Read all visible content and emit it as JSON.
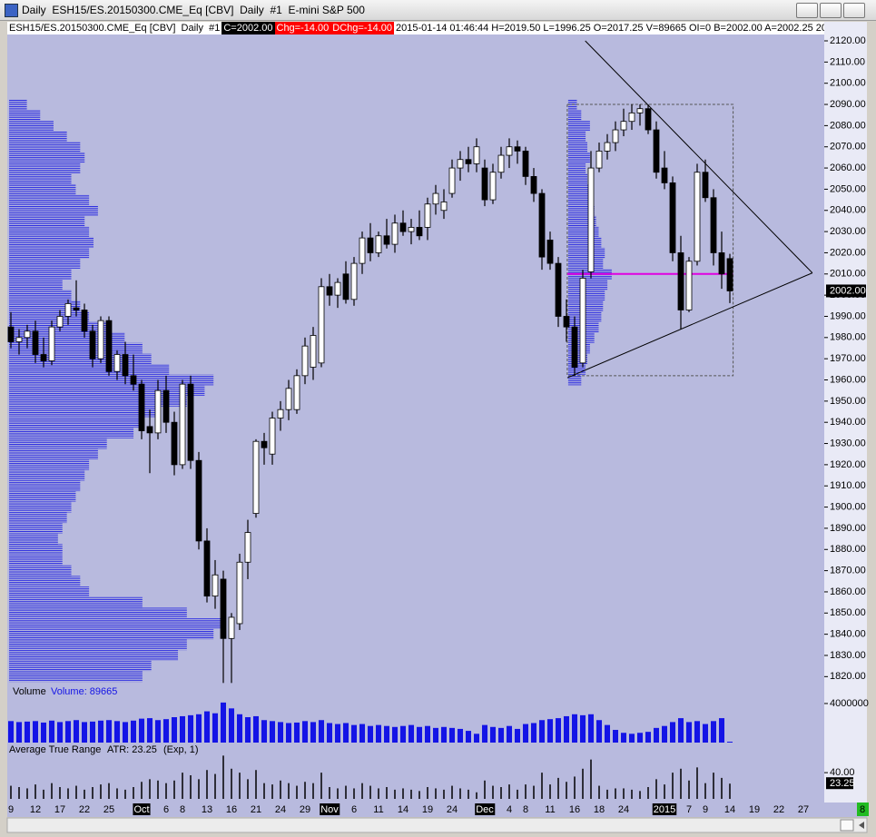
{
  "window": {
    "title": "Daily  ESH15/ES.20150300.CME_Eq [CBV]  Daily  #1  E-mini S&P 500",
    "info": [
      "ESH15/ES.20150300.CME_Eq [CBV]  Daily  #1",
      "C=2002.00",
      "Chg=-14.00",
      "DChg=-14.00",
      "2015-01-14 01:46:44 H=2019.50 L=1996.25 O=2017.25 V=89665 OI=0 B=2002.00 A=2002.25 20x13 DR"
    ],
    "badge": "8"
  },
  "chart_data": [
    {
      "type": "candlestick",
      "categories": [
        "9",
        null,
        null,
        "12",
        null,
        null,
        "17",
        null,
        null,
        "22",
        null,
        null,
        "25",
        null,
        null,
        null,
        "Oct",
        null,
        null,
        "6",
        null,
        "8",
        null,
        null,
        "13",
        null,
        null,
        "16",
        null,
        null,
        "21",
        null,
        null,
        "24",
        null,
        null,
        "29",
        null,
        null,
        "Nov",
        null,
        null,
        "6",
        null,
        null,
        "11",
        null,
        null,
        "14",
        null,
        null,
        "19",
        null,
        null,
        "24",
        null,
        null,
        null,
        "Dec",
        null,
        null,
        "4",
        null,
        "8",
        null,
        null,
        "11",
        null,
        null,
        "16",
        null,
        null,
        "18",
        null,
        null,
        "24",
        null,
        null,
        null,
        null,
        "2015",
        null,
        null,
        "7",
        null,
        "9",
        null,
        null,
        "14",
        null,
        null,
        "19",
        null,
        null,
        "22",
        null,
        null,
        "27",
        null,
        null
      ],
      "open": [
        1985,
        1978,
        1980,
        1983,
        1972,
        1969,
        1985,
        1990,
        1994,
        1993,
        1983,
        1970,
        1988,
        1964,
        1972,
        1962,
        1958,
        1938,
        1935,
        1955,
        1940,
        1920,
        1958,
        1922,
        1884,
        1858,
        1866,
        1838,
        1845,
        1874,
        1897,
        1931,
        1925,
        1942,
        1946,
        1946,
        1962,
        1966,
        1968,
        2004,
        2000,
        2010,
        1998,
        2015,
        2027,
        2020,
        2028,
        2024,
        2034,
        2030,
        2032,
        2032,
        2043,
        2040,
        2048,
        2060,
        2064,
        2062,
        2060,
        2045,
        2058,
        2066,
        2070,
        2068,
        2056,
        2048,
        2026,
        2015,
        1990,
        1985,
        1968,
        2011,
        2060,
        2068,
        2072,
        2078,
        2082,
        2086,
        2088,
        2078,
        2060,
        2053,
        2020,
        1993,
        2016,
        2058,
        2046,
        2020,
        2017.25,
        null,
        null,
        null,
        null,
        null,
        null,
        null,
        null,
        null,
        null,
        null
      ],
      "high": [
        1992,
        1984,
        1986,
        1988,
        1980,
        1988,
        1993,
        1998,
        2007,
        1996,
        1986,
        1990,
        1990,
        1974,
        1978,
        1972,
        1960,
        1946,
        1960,
        1962,
        1945,
        1960,
        1962,
        1926,
        1890,
        1875,
        1870,
        1850,
        1878,
        1894,
        1932,
        1935,
        1945,
        1950,
        1960,
        1965,
        1980,
        1985,
        2008,
        2010,
        2008,
        2016,
        2018,
        2030,
        2034,
        2030,
        2036,
        2038,
        2040,
        2036,
        2040,
        2046,
        2052,
        2050,
        2064,
        2068,
        2070,
        2074,
        2064,
        2062,
        2070,
        2074,
        2073,
        2070,
        2060,
        2050,
        2030,
        2018,
        1998,
        1990,
        2012,
        2068,
        2072,
        2076,
        2082,
        2088,
        2090,
        2090,
        2090,
        2082,
        2068,
        2056,
        2028,
        2018,
        2062,
        2064,
        2050,
        2030,
        2019.5,
        null,
        null,
        null,
        null,
        null,
        null,
        null,
        null,
        null,
        null,
        null
      ],
      "low": [
        1975,
        1972,
        1975,
        1968,
        1966,
        1967,
        1983,
        1986,
        1990,
        1980,
        1966,
        1968,
        1962,
        1960,
        1958,
        1955,
        1932,
        1916,
        1932,
        1935,
        1915,
        1918,
        1918,
        1880,
        1855,
        1852,
        1817,
        1817,
        1842,
        1866,
        1895,
        1920,
        1920,
        1936,
        1941,
        1944,
        1958,
        1960,
        1966,
        1995,
        1994,
        1996,
        1995,
        2010,
        2016,
        2018,
        2022,
        2020,
        2028,
        2024,
        2026,
        2026,
        2038,
        2036,
        2046,
        2054,
        2058,
        2058,
        2042,
        2043,
        2055,
        2060,
        2062,
        2052,
        2044,
        2012,
        2012,
        1985,
        1978,
        1962,
        1966,
        2008,
        2058,
        2064,
        2068,
        2075,
        2078,
        2080,
        2076,
        2055,
        2050,
        2016,
        1984,
        1992,
        2014,
        2044,
        2014,
        2003,
        1996.25,
        null,
        null,
        null,
        null,
        null,
        null,
        null,
        null,
        null,
        null,
        null
      ],
      "close": [
        1978,
        1980,
        1983,
        1972,
        1969,
        1985,
        1990,
        1996,
        1993,
        1983,
        1970,
        1988,
        1964,
        1972,
        1962,
        1958,
        1936,
        1935,
        1955,
        1940,
        1920,
        1958,
        1922,
        1884,
        1858,
        1868,
        1838,
        1848,
        1874,
        1888,
        1931,
        1928,
        1942,
        1946,
        1956,
        1962,
        1976,
        1981,
        2004,
        2000,
        2006,
        1998,
        2015,
        2027,
        2020,
        2028,
        2024,
        2034,
        2030,
        2032,
        2028,
        2043,
        2048,
        2044,
        2060,
        2064,
        2062,
        2070,
        2045,
        2058,
        2066,
        2070,
        2068,
        2056,
        2048,
        2018,
        2015,
        1990,
        1985,
        1966,
        2008,
        2060,
        2068,
        2072,
        2078,
        2082,
        2086,
        2088,
        2078,
        2058,
        2053,
        2020,
        1993,
        2016,
        2058,
        2046,
        2020,
        2010,
        2002,
        null,
        null,
        null,
        null,
        null,
        null,
        null,
        null,
        null,
        null,
        null
      ],
      "up_color": "#ffffff",
      "down_color": "#000000",
      "ylim": [
        1815,
        2123
      ],
      "yticks": [
        {
          "value": 1820,
          "label": "1820.00"
        },
        {
          "value": 1830,
          "label": "1830.00"
        },
        {
          "value": 1840,
          "label": "1840.00"
        },
        {
          "value": 1850,
          "label": "1850.00"
        },
        {
          "value": 1860,
          "label": "1860.00"
        },
        {
          "value": 1870,
          "label": "1870.00"
        },
        {
          "value": 1880,
          "label": "1880.00"
        },
        {
          "value": 1890,
          "label": "1890.00"
        },
        {
          "value": 1900,
          "label": "1900.00"
        },
        {
          "value": 1910,
          "label": "1910.00"
        },
        {
          "value": 1920,
          "label": "1920.00"
        },
        {
          "value": 1930,
          "label": "1930.00"
        },
        {
          "value": 1940,
          "label": "1940.00"
        },
        {
          "value": 1950,
          "label": "1950.00"
        },
        {
          "value": 1960,
          "label": "1960.00"
        },
        {
          "value": 1970,
          "label": "1970.00"
        },
        {
          "value": 1980,
          "label": "1980.00"
        },
        {
          "value": 1990,
          "label": "1990.00"
        },
        {
          "value": 2000,
          "label": "2000.00"
        },
        {
          "value": 2010,
          "label": "2010.00"
        },
        {
          "value": 2020,
          "label": "2020.00"
        },
        {
          "value": 2030,
          "label": "2030.00"
        },
        {
          "value": 2040,
          "label": "2040.00"
        },
        {
          "value": 2050,
          "label": "2050.00"
        },
        {
          "value": 2060,
          "label": "2060.00"
        },
        {
          "value": 2070,
          "label": "2070.00"
        },
        {
          "value": 2080,
          "label": "2080.00"
        },
        {
          "value": 2090,
          "label": "2090.00"
        },
        {
          "value": 2100,
          "label": "2100.00"
        },
        {
          "value": 2110,
          "label": "2110.00"
        },
        {
          "value": 2120,
          "label": "2120.00"
        }
      ],
      "last_price": {
        "value": 2002,
        "label": "2002.00"
      },
      "profiles": [
        {
          "color": "#2a2ae0",
          "prices": [
            1820,
            1825,
            1830,
            1835,
            1840,
            1845,
            1850,
            1855,
            1860,
            1865,
            1870,
            1875,
            1880,
            1885,
            1890,
            1895,
            1900,
            1905,
            1910,
            1915,
            1920,
            1925,
            1930,
            1935,
            1940,
            1945,
            1950,
            1955,
            1960,
            1965,
            1970,
            1975,
            1980,
            1985,
            1990,
            1995,
            2000,
            2005,
            2010,
            2015,
            2020,
            2025,
            2030,
            2035,
            2040,
            2045,
            2050,
            2055,
            2060,
            2065,
            2070,
            2075,
            2080,
            2085,
            2090
          ],
          "volumes": [
            150,
            160,
            190,
            200,
            230,
            240,
            200,
            150,
            90,
            80,
            70,
            60,
            60,
            55,
            60,
            65,
            70,
            75,
            80,
            85,
            90,
            100,
            110,
            140,
            150,
            170,
            200,
            220,
            230,
            180,
            160,
            150,
            130,
            110,
            90,
            80,
            70,
            60,
            70,
            80,
            90,
            95,
            90,
            85,
            100,
            90,
            75,
            70,
            80,
            85,
            80,
            65,
            50,
            35,
            20
          ]
        },
        {
          "color": "#2a2ae0",
          "prices": [
            1960,
            1965,
            1970,
            1975,
            1980,
            1985,
            1990,
            1995,
            2000,
            2005,
            2010,
            2015,
            2020,
            2025,
            2030,
            2035,
            2040,
            2045,
            2050,
            2055,
            2060,
            2065,
            2070,
            2075,
            2080,
            2085,
            2090
          ],
          "volumes": [
            15,
            20,
            22,
            25,
            30,
            35,
            38,
            40,
            42,
            45,
            50,
            40,
            42,
            38,
            35,
            32,
            30,
            28,
            25,
            22,
            20,
            25,
            22,
            20,
            25,
            15,
            10
          ]
        }
      ],
      "box": {
        "x": [
          68.1,
          88.4
        ],
        "y": [
          1962,
          2090
        ]
      },
      "hline": {
        "x": [
          68.1,
          88.4
        ],
        "y": 2010,
        "color": "#e000e0"
      },
      "trendlines": [
        {
          "x": [
            70.3,
            98.1
          ],
          "y": [
            2120,
            2010.5
          ]
        },
        {
          "x": [
            68.1,
            98.1
          ],
          "y": [
            1961,
            2010.5
          ]
        }
      ]
    },
    {
      "type": "bar",
      "title": "Volume",
      "legend": "Volume: 89665",
      "color": "#1414e6",
      "values": [
        2200000,
        2100000,
        2150000,
        2200000,
        2050000,
        2250000,
        2100000,
        2200000,
        2300000,
        2100000,
        2150000,
        2250000,
        2300000,
        2200000,
        2100000,
        2250000,
        2450000,
        2500000,
        2300000,
        2400000,
        2600000,
        2700000,
        2800000,
        2900000,
        3200000,
        3000000,
        4100000,
        3500000,
        2900000,
        2600000,
        2700000,
        2300000,
        2200000,
        2100000,
        2000000,
        2050000,
        2200000,
        2100000,
        2300000,
        2000000,
        1900000,
        2000000,
        1800000,
        1900000,
        1700000,
        1800000,
        1700000,
        1600000,
        1700000,
        1800000,
        1600000,
        1700000,
        1500000,
        1600000,
        1500000,
        1400000,
        1200000,
        900000,
        1800000,
        1600000,
        1500000,
        1700000,
        1400000,
        1900000,
        2000000,
        2300000,
        2400000,
        2500000,
        2700000,
        2900000,
        2800000,
        2900000,
        2300000,
        1800000,
        1300000,
        1000000,
        900000,
        1000000,
        1100000,
        1500000,
        1700000,
        2100000,
        2500000,
        2100000,
        2200000,
        1900000,
        2200000,
        2500000,
        89665,
        null,
        null,
        null,
        null,
        null,
        null,
        null,
        null,
        null,
        null,
        null
      ],
      "ylim": [
        0,
        4460000
      ],
      "yticks": [
        4000000
      ]
    },
    {
      "type": "stem",
      "title": "Average True Range",
      "legend": "ATR: 23.25",
      "note": "(Exp, 1)",
      "color": "#000000",
      "values": [
        20,
        18,
        16,
        22,
        14,
        24,
        18,
        16,
        20,
        14,
        18,
        22,
        24,
        16,
        14,
        18,
        26,
        30,
        28,
        24,
        28,
        40,
        36,
        30,
        44,
        38,
        66,
        46,
        40,
        30,
        44,
        24,
        22,
        28,
        24,
        20,
        26,
        24,
        40,
        18,
        16,
        20,
        16,
        24,
        20,
        16,
        18,
        14,
        16,
        14,
        12,
        18,
        16,
        14,
        20,
        16,
        14,
        10,
        28,
        20,
        18,
        22,
        14,
        22,
        20,
        40,
        22,
        32,
        26,
        34,
        46,
        60,
        20,
        14,
        16,
        16,
        14,
        12,
        18,
        30,
        22,
        40,
        46,
        28,
        48,
        24,
        40,
        32,
        23.25,
        null,
        null,
        null,
        null,
        null,
        null,
        null,
        null,
        null,
        null,
        null
      ],
      "ylim": [
        0,
        72
      ],
      "yticks": [
        {
          "value": 40,
          "label": "40.00"
        }
      ],
      "last": 23.25
    }
  ]
}
